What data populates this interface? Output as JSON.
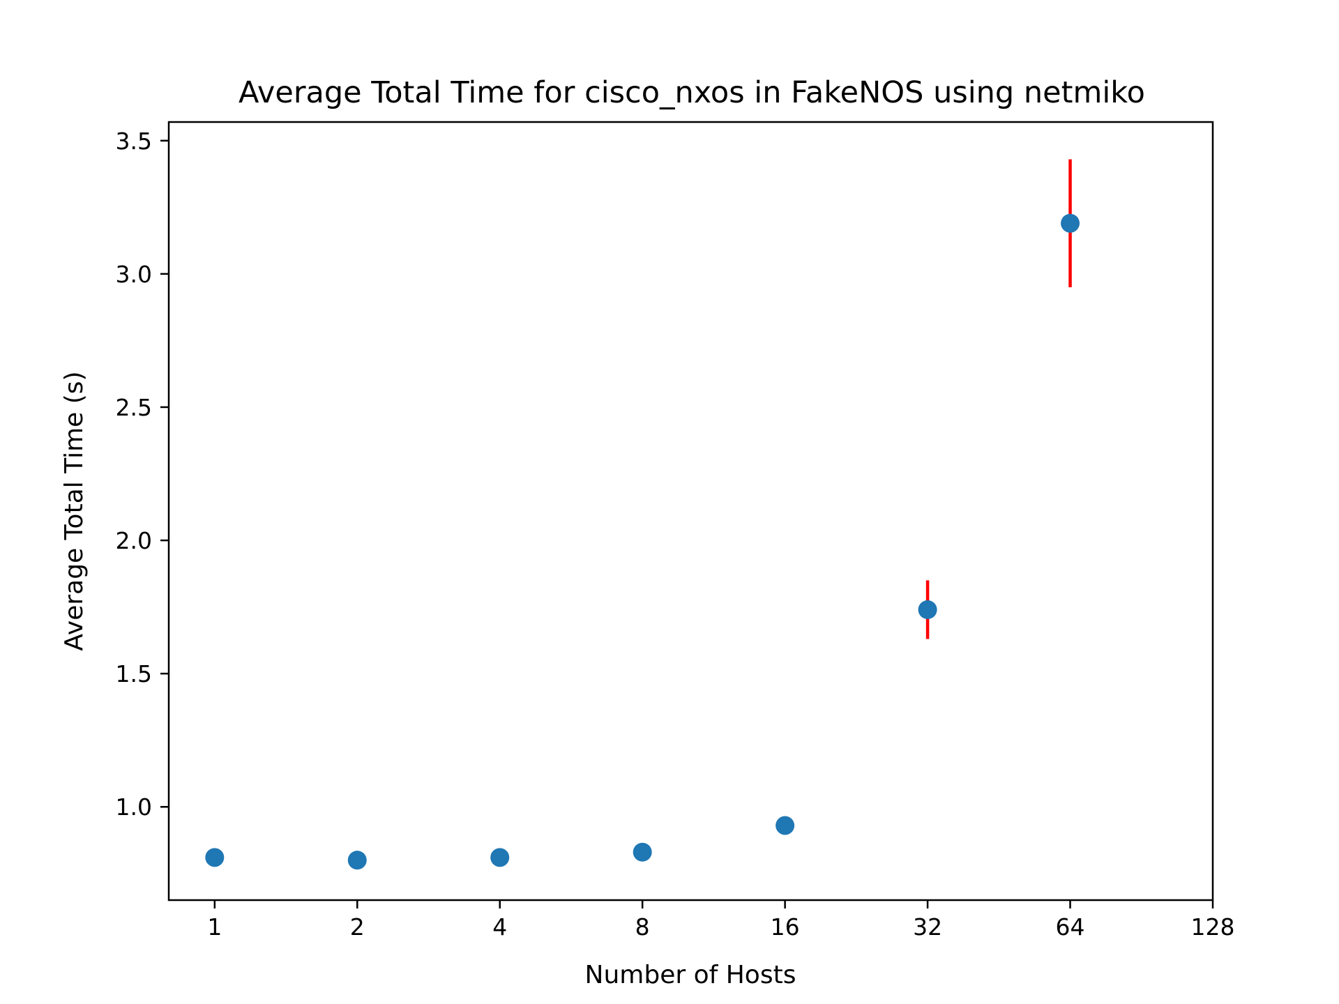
{
  "chart_data": {
    "type": "scatter",
    "title": "Average Total Time for cisco_nxos in FakeNOS using netmiko",
    "xlabel": "Number of Hosts",
    "ylabel": "Average Total Time (s)",
    "x_scale": "log2",
    "x_ticks": [
      1,
      2,
      4,
      8,
      16,
      32,
      64,
      128
    ],
    "x_tick_labels": [
      "1",
      "2",
      "4",
      "8",
      "16",
      "32",
      "64",
      "128"
    ],
    "xlim": [
      0.8,
      128
    ],
    "y_ticks": [
      1.0,
      1.5,
      2.0,
      2.5,
      3.0,
      3.5
    ],
    "y_tick_labels": [
      "1.0",
      "1.5",
      "2.0",
      "2.5",
      "3.0",
      "3.5"
    ],
    "ylim": [
      0.65,
      3.57
    ],
    "grid": false,
    "series": [
      {
        "x": [
          1,
          2,
          4,
          8,
          16,
          32,
          64
        ],
        "y": [
          0.81,
          0.8,
          0.81,
          0.83,
          0.93,
          1.74,
          3.19
        ],
        "y_err_low": [
          0.0,
          0.0,
          0.0,
          0.0,
          0.0,
          0.11,
          0.24
        ],
        "y_err_high": [
          0.0,
          0.0,
          0.0,
          0.0,
          0.0,
          0.11,
          0.24
        ],
        "color": "#1f77b4",
        "error_color": "#ff0000"
      }
    ]
  },
  "colors": {
    "point": "#1f77b4",
    "error_bar": "#ff0000",
    "axes": "#000000"
  }
}
